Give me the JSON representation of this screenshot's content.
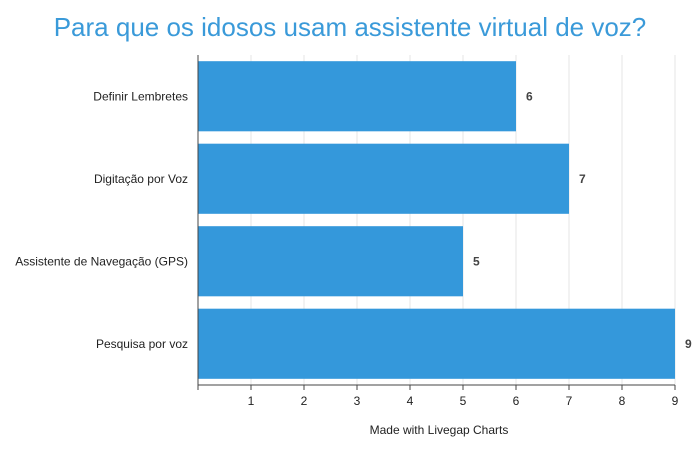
{
  "chart_data": {
    "type": "bar",
    "orientation": "horizontal",
    "title": "Para que os idosos usam assistente virtual de voz?",
    "categories": [
      "Definir Lembretes",
      "Digitação por Voz",
      "Assistente de Navegação (GPS)",
      "Pesquisa por voz"
    ],
    "values": [
      6,
      7,
      5,
      9
    ],
    "xlim": [
      0,
      9
    ],
    "x_ticks": [
      1,
      2,
      3,
      4,
      5,
      6,
      7,
      8,
      9
    ],
    "grid": true,
    "bar_color": "#3498db",
    "footer": "Made with Livegap Charts"
  }
}
